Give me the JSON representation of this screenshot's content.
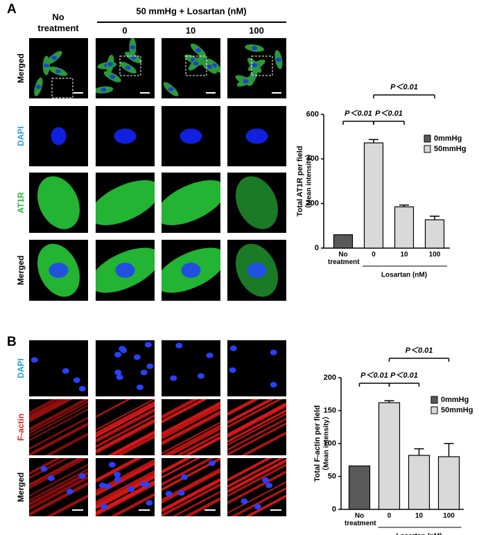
{
  "figure": {
    "panel_a": "A",
    "panel_b": "B",
    "col_header_untreated": "No treatment",
    "col_header_group": "50 mmHg + Losartan (nM)",
    "col_labels": [
      "0",
      "10",
      "100"
    ],
    "rows_a": [
      "Merged",
      "DAPI",
      "AT1R",
      "Merged"
    ],
    "rows_b": [
      "DAPI",
      "F-actin",
      "Merged"
    ]
  },
  "chart_data": [
    {
      "type": "bar",
      "ylabel": "Total AT1R per field",
      "ylabel_sub": "（Mean intensity）",
      "categories": [
        "No treatment",
        "0",
        "10",
        "100"
      ],
      "xlabel": "Losartan (nM)",
      "series": [
        {
          "name": "0mmHg",
          "color": "#595959",
          "values": [
            60,
            null,
            null,
            null
          ]
        },
        {
          "name": "50mmHg",
          "color": "#d9d9d9",
          "values": [
            null,
            472,
            185,
            127
          ],
          "errors": [
            null,
            15,
            8,
            16
          ]
        }
      ],
      "ylim": [
        0,
        600
      ],
      "yticks": [
        0,
        200,
        400,
        600
      ],
      "annotations": [
        "P＜0.01",
        "P＜0.01",
        "P＜0.01"
      ]
    },
    {
      "type": "bar",
      "ylabel": "Total F-actin per field",
      "ylabel_sub": "（Mean intensity）",
      "categories": [
        "No treatment",
        "0",
        "10",
        "100"
      ],
      "xlabel": "Losartan (nM)",
      "series": [
        {
          "name": "0mmHg",
          "color": "#595959",
          "values": [
            66,
            null,
            null,
            null
          ]
        },
        {
          "name": "50mmHg",
          "color": "#d9d9d9",
          "values": [
            null,
            162,
            82,
            80
          ],
          "errors": [
            null,
            3,
            10,
            20
          ]
        }
      ],
      "ylim": [
        0,
        200
      ],
      "yticks": [
        0,
        50,
        100,
        150,
        200
      ],
      "annotations": [
        "P＜0.01",
        "P＜0.01",
        "P＜0.01"
      ]
    }
  ]
}
